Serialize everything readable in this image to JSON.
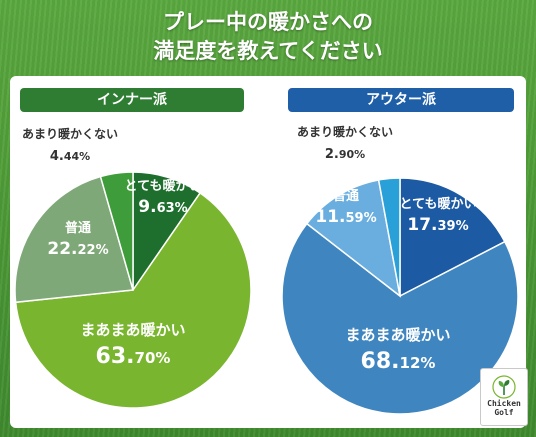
{
  "title_line1": "プレー中の暖かさへの",
  "title_line2": "満足度を教えてください",
  "logo_line1": "Chicken",
  "logo_line2": "Golf",
  "chart_data": [
    {
      "type": "pie",
      "title": "インナー派",
      "banner_color": "#2e7d32",
      "slices": [
        {
          "label": "とても暖かい",
          "value": 9.63,
          "color": "#1e6f2e"
        },
        {
          "label": "まあまあ暖かい",
          "value": 63.7,
          "color": "#7ab52f"
        },
        {
          "label": "普通",
          "value": 22.22,
          "color": "#7fa878"
        },
        {
          "label": "あまり暖かくない",
          "value": 4.44,
          "color": "#3f9c3a"
        }
      ]
    },
    {
      "type": "pie",
      "title": "アウター派",
      "banner_color": "#1f5fa8",
      "slices": [
        {
          "label": "とても暖かい",
          "value": 17.39,
          "color": "#1c5aa3"
        },
        {
          "label": "まあまあ暖かい",
          "value": 68.12,
          "color": "#3f86c0"
        },
        {
          "label": "普通",
          "value": 11.59,
          "color": "#6aaee0"
        },
        {
          "label": "あまり暖かくない",
          "value": 2.9,
          "color": "#2aa0d8"
        }
      ]
    }
  ]
}
